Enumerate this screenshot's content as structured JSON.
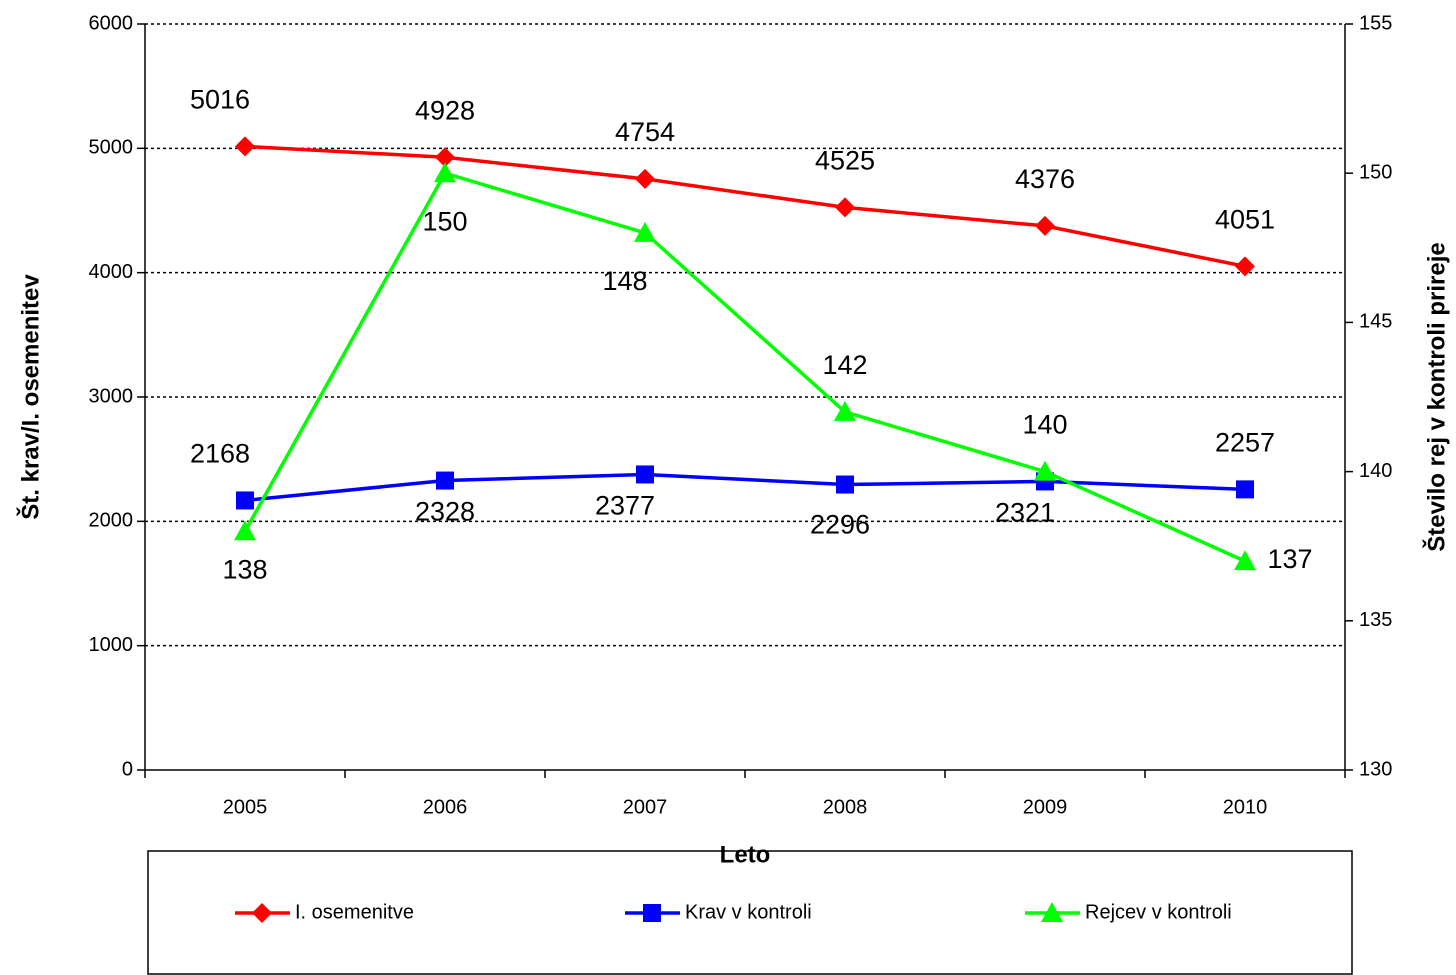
{
  "chart_data": {
    "type": "line",
    "categories": [
      "2005",
      "2006",
      "2007",
      "2008",
      "2009",
      "2010"
    ],
    "series": [
      {
        "name": "I. osemenitve",
        "color": "#ff0000",
        "marker": "diamond",
        "values": [
          5016,
          4928,
          4754,
          4525,
          4376,
          4051
        ]
      },
      {
        "name": "Krav v kontroli",
        "color": "#0000ff",
        "marker": "square",
        "values": [
          2168,
          2328,
          2377,
          2296,
          2321,
          2257
        ]
      },
      {
        "name": "Rejcev v kontroli",
        "color": "#00ff00",
        "marker": "triangle",
        "axis": "y2",
        "values": [
          138,
          150,
          148,
          142,
          140,
          137
        ]
      }
    ],
    "xlabel": "Leto",
    "ylabel": "Št. krav/I. osemenitev",
    "y2label": "Število rej v kontroli prireje",
    "ylim": [
      0,
      6000
    ],
    "yticks": [
      0,
      1000,
      2000,
      3000,
      4000,
      5000,
      6000
    ],
    "y2lim": [
      130,
      155
    ],
    "y2ticks": [
      130,
      135,
      140,
      145,
      150,
      155
    ],
    "grid": true,
    "legend": "bottom"
  }
}
